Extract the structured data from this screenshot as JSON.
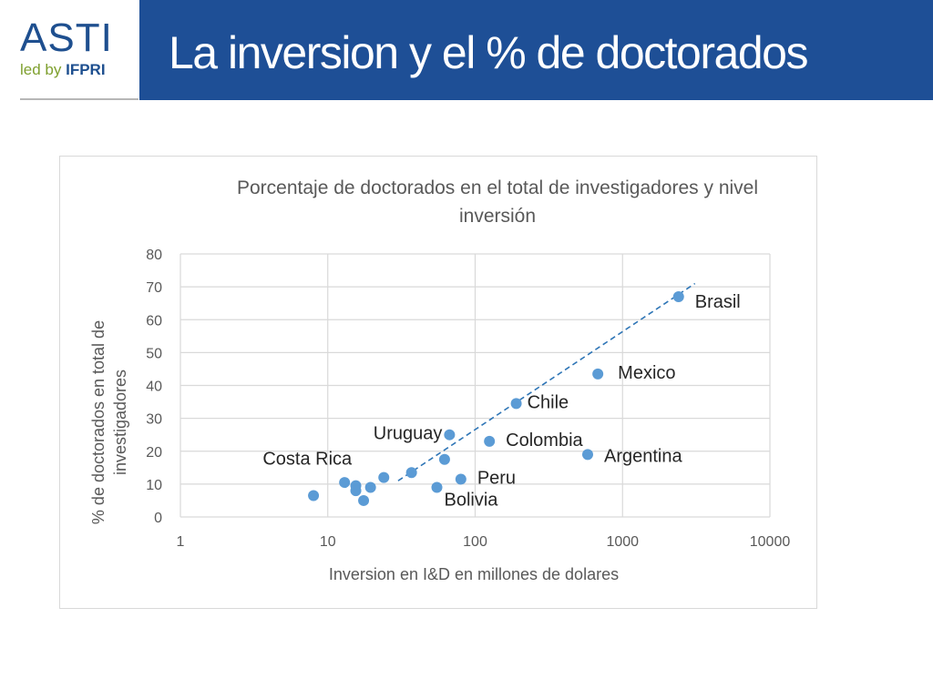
{
  "header": {
    "logo": {
      "main": "ASTI",
      "led": "led by",
      "brand": "IFPRI"
    },
    "title": "La inversion y el % de doctorados"
  },
  "colors": {
    "header_bg": "#1e4f96",
    "point": "#5b9bd5",
    "trendline": "#2e75b6",
    "gridline": "#d9d9d9",
    "text": "#595959"
  },
  "chart_data": {
    "type": "scatter",
    "title": "Porcentaje de doctorados en el total de investigadores y nivel inversión",
    "title_lines": [
      "Porcentaje de doctorados en el total de investigadores y nivel",
      "inversión"
    ],
    "xlabel": "Inversion en I&D en millones de dolares",
    "ylabel": "% de doctorados en total de investigadores",
    "ylabel_lines": [
      "% de doctorados en total de",
      "investigadores"
    ],
    "x_scale": "log",
    "xlim": [
      1,
      10000
    ],
    "ylim": [
      0,
      80
    ],
    "x_ticks": [
      1,
      10,
      100,
      1000,
      10000
    ],
    "x_tick_labels": [
      "1",
      "10",
      "100",
      "1000",
      "10000"
    ],
    "y_ticks": [
      0,
      10,
      20,
      30,
      40,
      50,
      60,
      70,
      80
    ],
    "y_tick_labels": [
      "0",
      "10",
      "20",
      "30",
      "40",
      "50",
      "60",
      "70",
      "80"
    ],
    "grid": true,
    "legend": "none",
    "points": [
      {
        "x": 2400,
        "y": 67,
        "label": "Brasil"
      },
      {
        "x": 680,
        "y": 43.5,
        "label": "Mexico"
      },
      {
        "x": 190,
        "y": 34.5,
        "label": "Chile"
      },
      {
        "x": 125,
        "y": 23,
        "label": "Colombia"
      },
      {
        "x": 580,
        "y": 19,
        "label": "Argentina"
      },
      {
        "x": 67,
        "y": 25,
        "label": "Uruguay"
      },
      {
        "x": 24,
        "y": 12,
        "label": "Costa Rica"
      },
      {
        "x": 80,
        "y": 11.5,
        "label": "Peru"
      },
      {
        "x": 55,
        "y": 9,
        "label": "Bolivia"
      },
      {
        "x": 8,
        "y": 6.5,
        "label": ""
      },
      {
        "x": 13,
        "y": 10.5,
        "label": ""
      },
      {
        "x": 15.5,
        "y": 9.5,
        "label": ""
      },
      {
        "x": 15.5,
        "y": 8,
        "label": ""
      },
      {
        "x": 17.5,
        "y": 5,
        "label": ""
      },
      {
        "x": 19.5,
        "y": 9,
        "label": ""
      },
      {
        "x": 37,
        "y": 13.5,
        "label": ""
      },
      {
        "x": 62,
        "y": 17.5,
        "label": ""
      }
    ],
    "trendline": {
      "type": "linear-dashed",
      "x": [
        30,
        3100
      ],
      "y": [
        11,
        71
      ]
    }
  }
}
